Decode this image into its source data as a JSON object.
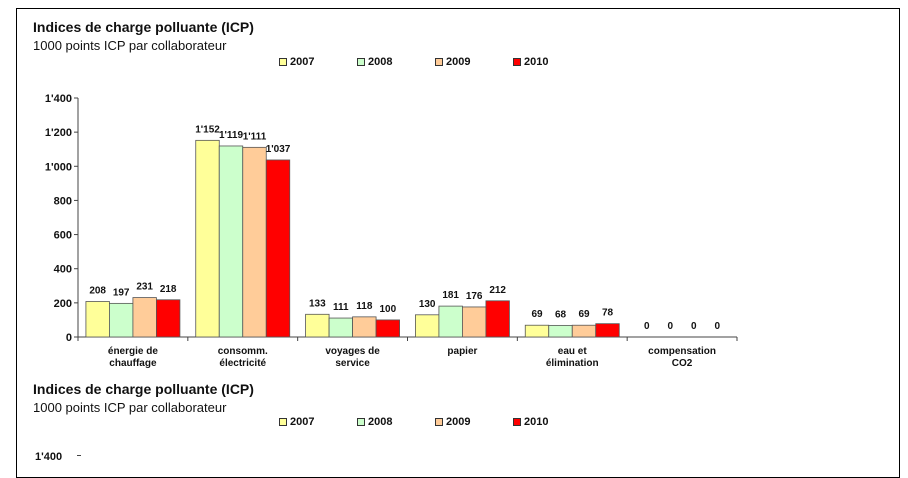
{
  "chart_data": {
    "type": "bar",
    "title": "Indices de charge polluante (ICP)",
    "subtitle": "1000 points ICP par collaborateur",
    "categories": [
      [
        "énergie de",
        "chauffage"
      ],
      [
        "consomm.",
        "électricité"
      ],
      [
        "voyages de",
        "service"
      ],
      [
        "papier"
      ],
      [
        "eau et",
        "élimination"
      ],
      [
        "compensation",
        "CO2"
      ]
    ],
    "series": [
      {
        "name": "2007",
        "color": "#ffff99",
        "values": [
          208,
          1152,
          133,
          130,
          69,
          0
        ],
        "labels": [
          "208",
          "1'152",
          "133",
          "130",
          "69",
          "0"
        ]
      },
      {
        "name": "2008",
        "color": "#ccffcc",
        "values": [
          197,
          1119,
          111,
          181,
          68,
          0
        ],
        "labels": [
          "197",
          "1'119",
          "111",
          "181",
          "68",
          "0"
        ]
      },
      {
        "name": "2009",
        "color": "#ffcc99",
        "values": [
          231,
          1111,
          118,
          176,
          69,
          0
        ],
        "labels": [
          "231",
          "1'111",
          "118",
          "176",
          "69",
          "0"
        ]
      },
      {
        "name": "2010",
        "color": "#ff0000",
        "values": [
          218,
          1037,
          100,
          212,
          78,
          0
        ],
        "labels": [
          "218",
          "1'037",
          "100",
          "212",
          "78",
          "0"
        ]
      }
    ],
    "yticks": [
      0,
      200,
      400,
      600,
      800,
      1000,
      1200,
      1400
    ],
    "ytick_labels": [
      "0",
      "200",
      "400",
      "600",
      "800",
      "1'000",
      "1'200",
      "1'400"
    ],
    "ylim": [
      0,
      1400
    ],
    "legend": "top",
    "grid": false
  },
  "second_panel": {
    "title": "Indices de charge polluante (ICP)",
    "subtitle": "1000 points ICP par collaborateur",
    "top_tick_label": "1'400"
  }
}
